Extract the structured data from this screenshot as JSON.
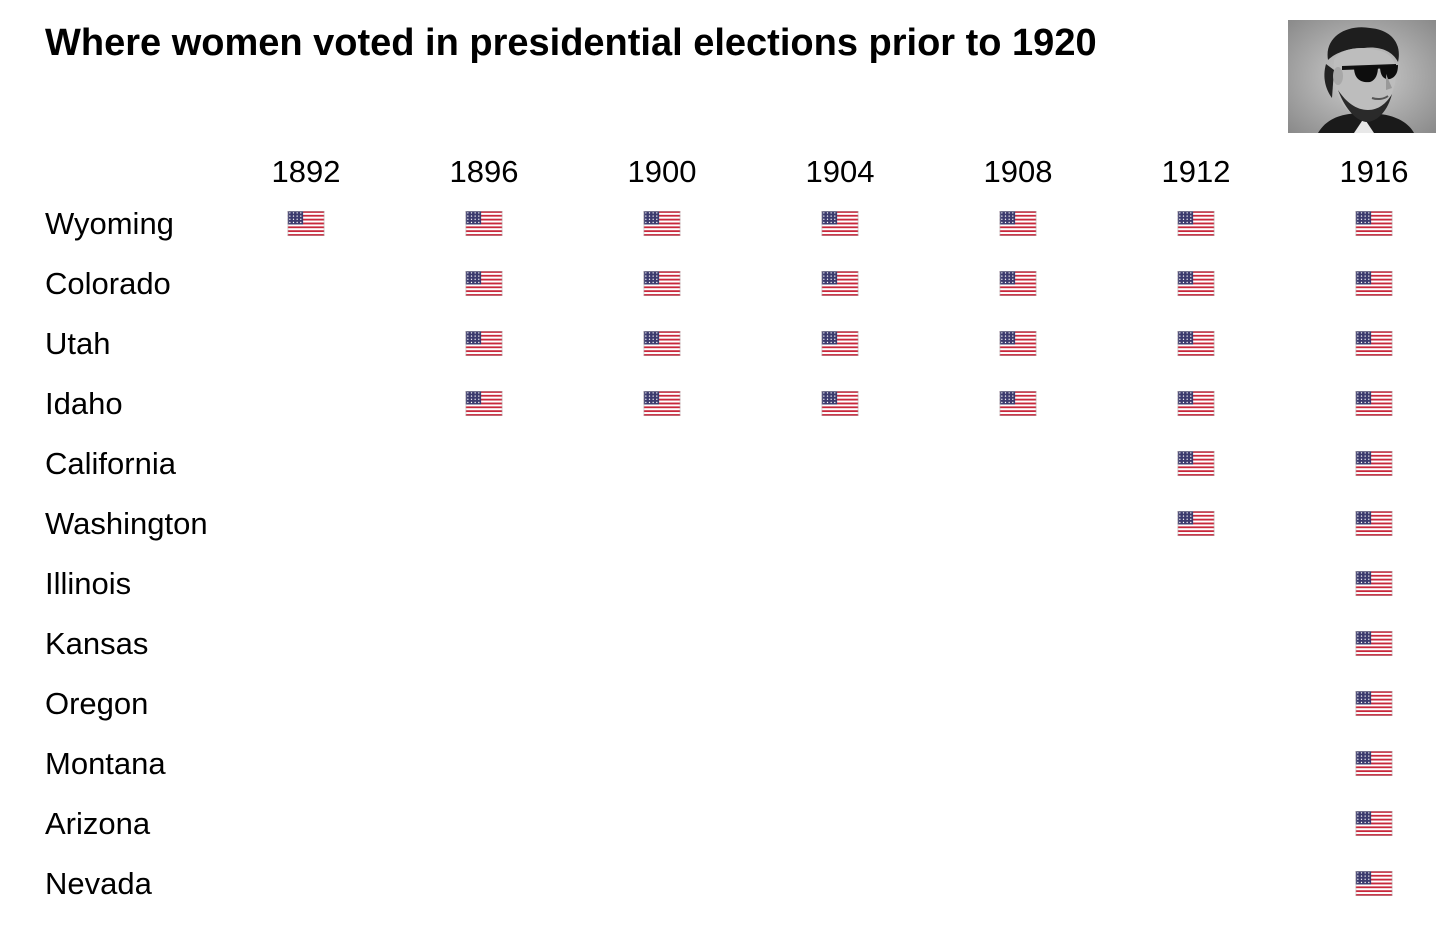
{
  "title": "Where women voted in presidential elections prior to 1920",
  "portrait_icon": "lincoln-sunglasses-portrait",
  "flag_icon": "us-flag-icon",
  "colors": {
    "flag_red": "#c8283c",
    "flag_white": "#ffffff",
    "flag_blue": "#3c3b6e",
    "text": "#000000"
  },
  "chart_data": {
    "type": "table",
    "title": "Where women voted in presidential elections prior to 1920",
    "columns": [
      "1892",
      "1896",
      "1900",
      "1904",
      "1908",
      "1912",
      "1916"
    ],
    "rows": [
      {
        "state": "Wyoming",
        "voted": [
          true,
          true,
          true,
          true,
          true,
          true,
          true
        ]
      },
      {
        "state": "Colorado",
        "voted": [
          false,
          true,
          true,
          true,
          true,
          true,
          true
        ]
      },
      {
        "state": "Utah",
        "voted": [
          false,
          true,
          true,
          true,
          true,
          true,
          true
        ]
      },
      {
        "state": "Idaho",
        "voted": [
          false,
          true,
          true,
          true,
          true,
          true,
          true
        ]
      },
      {
        "state": "California",
        "voted": [
          false,
          false,
          false,
          false,
          false,
          true,
          true
        ]
      },
      {
        "state": "Washington",
        "voted": [
          false,
          false,
          false,
          false,
          false,
          true,
          true
        ]
      },
      {
        "state": "Illinois",
        "voted": [
          false,
          false,
          false,
          false,
          false,
          false,
          true
        ]
      },
      {
        "state": "Kansas",
        "voted": [
          false,
          false,
          false,
          false,
          false,
          false,
          true
        ]
      },
      {
        "state": "Oregon",
        "voted": [
          false,
          false,
          false,
          false,
          false,
          false,
          true
        ]
      },
      {
        "state": "Montana",
        "voted": [
          false,
          false,
          false,
          false,
          false,
          false,
          true
        ]
      },
      {
        "state": "Arizona",
        "voted": [
          false,
          false,
          false,
          false,
          false,
          false,
          true
        ]
      },
      {
        "state": "Nevada",
        "voted": [
          false,
          false,
          false,
          false,
          false,
          false,
          true
        ]
      }
    ]
  }
}
